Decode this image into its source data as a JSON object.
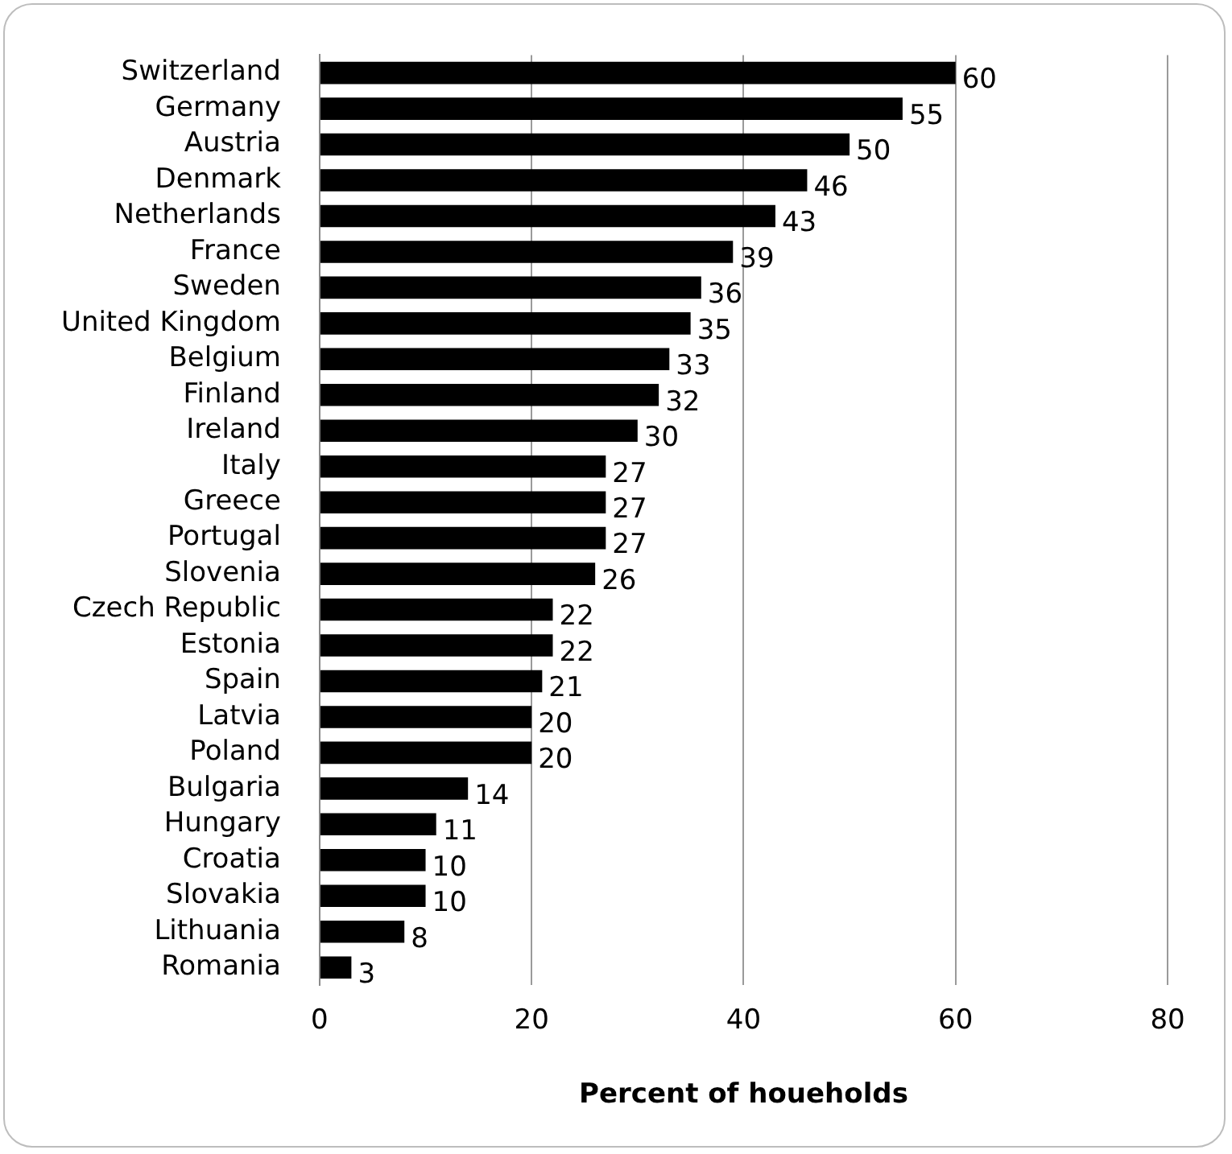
{
  "chart_data": {
    "type": "bar",
    "orientation": "horizontal",
    "xlabel": "Percent of houeholds",
    "categories": [
      "Switzerland",
      "Germany",
      "Austria",
      "Denmark",
      "Netherlands",
      "France",
      "Sweden",
      "United Kingdom",
      "Belgium",
      "Finland",
      "Ireland",
      "Italy",
      "Greece",
      "Portugal",
      "Slovenia",
      "Czech Republic",
      "Estonia",
      "Spain",
      "Latvia",
      "Poland",
      "Bulgaria",
      "Hungary",
      "Croatia",
      "Slovakia",
      "Lithuania",
      "Romania"
    ],
    "values": [
      60,
      55,
      50,
      46,
      43,
      39,
      36,
      35,
      33,
      32,
      30,
      27,
      27,
      27,
      26,
      22,
      22,
      21,
      20,
      20,
      14,
      11,
      10,
      10,
      8,
      3
    ],
    "color": "#000000",
    "xlim": [
      0,
      80
    ],
    "xticks": [
      0,
      20,
      40,
      60,
      80
    ],
    "grid": "x",
    "data_labels": true,
    "legend": false
  }
}
